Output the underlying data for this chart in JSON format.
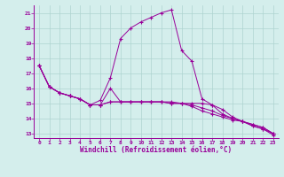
{
  "xlabel": "Windchill (Refroidissement éolien,°C)",
  "background_color": "#d4eeec",
  "grid_color": "#aed4d0",
  "line_color": "#990099",
  "x": [
    0,
    1,
    2,
    3,
    4,
    5,
    6,
    7,
    8,
    9,
    10,
    11,
    12,
    13,
    14,
    15,
    16,
    17,
    18,
    19,
    20,
    21,
    22,
    23
  ],
  "series1": [
    17.5,
    16.1,
    15.7,
    15.5,
    15.3,
    14.9,
    14.9,
    16.0,
    15.1,
    15.1,
    15.1,
    15.1,
    15.1,
    15.1,
    15.0,
    15.0,
    15.0,
    14.9,
    14.6,
    14.1,
    13.8,
    13.6,
    13.4,
    13.0
  ],
  "series2": [
    17.5,
    16.1,
    15.7,
    15.5,
    15.3,
    14.9,
    15.2,
    16.7,
    19.3,
    20.0,
    20.4,
    20.7,
    21.0,
    21.2,
    18.5,
    17.8,
    15.3,
    14.9,
    14.3,
    14.0,
    13.8,
    13.5,
    13.3,
    12.9
  ],
  "series3": [
    17.5,
    16.1,
    15.7,
    15.5,
    15.3,
    14.9,
    14.9,
    15.1,
    15.1,
    15.1,
    15.1,
    15.1,
    15.1,
    15.0,
    15.0,
    14.9,
    14.7,
    14.5,
    14.2,
    14.0,
    13.8,
    13.6,
    13.4,
    13.0
  ],
  "series4": [
    17.5,
    16.1,
    15.7,
    15.5,
    15.3,
    14.9,
    14.9,
    15.1,
    15.1,
    15.1,
    15.1,
    15.1,
    15.1,
    15.0,
    15.0,
    14.8,
    14.5,
    14.3,
    14.1,
    13.9,
    13.8,
    13.5,
    13.3,
    13.0
  ],
  "ylim": [
    12.7,
    21.5
  ],
  "yticks": [
    13,
    14,
    15,
    16,
    17,
    18,
    19,
    20,
    21
  ],
  "xticks": [
    0,
    1,
    2,
    3,
    4,
    5,
    6,
    7,
    8,
    9,
    10,
    11,
    12,
    13,
    14,
    15,
    16,
    17,
    18,
    19,
    20,
    21,
    22,
    23
  ]
}
